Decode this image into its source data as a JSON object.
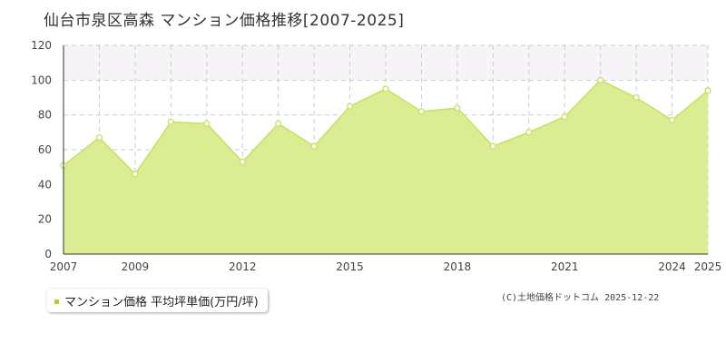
{
  "title": "仙台市泉区高森 マンション価格推移[2007-2025]",
  "legend": {
    "label": "マンション価格 平均坪単価(万円/坪)"
  },
  "credit": "(C)土地価格ドットコム 2025-12-22",
  "colors": {
    "area_fill": "#daed92",
    "line": "#c4e166",
    "marker_stroke": "#c4e166",
    "marker_fill": "#ffffff",
    "legend_marker": "#a8d42b",
    "grid": "#cccccc",
    "highlight_band": "#f7f4f7"
  },
  "chart_data": {
    "type": "area",
    "title": "",
    "xlabel": "",
    "ylabel": "",
    "x": [
      2007,
      2008,
      2009,
      2010,
      2011,
      2012,
      2013,
      2014,
      2015,
      2016,
      2017,
      2018,
      2019,
      2020,
      2021,
      2022,
      2023,
      2024,
      2025
    ],
    "series": [
      {
        "name": "マンション価格 平均坪単価(万円/坪)",
        "values": [
          51,
          67,
          46,
          76,
          75,
          53,
          75,
          62,
          85,
          95,
          82,
          84,
          62,
          70,
          79,
          100,
          90,
          77,
          94
        ]
      }
    ],
    "xlim": [
      2007,
      2025
    ],
    "ylim": [
      0,
      120
    ],
    "x_tick_labels": [
      "2007",
      "2009",
      "2012",
      "2015",
      "2018",
      "2021",
      "2024",
      "2025"
    ],
    "y_tick_labels": [
      "0",
      "20",
      "40",
      "60",
      "80",
      "100",
      "120"
    ],
    "y_ticks": [
      0,
      20,
      40,
      60,
      80,
      100,
      120
    ],
    "grid": true,
    "highlight_band": [
      100,
      120
    ],
    "legend_position": "bottom-left"
  }
}
